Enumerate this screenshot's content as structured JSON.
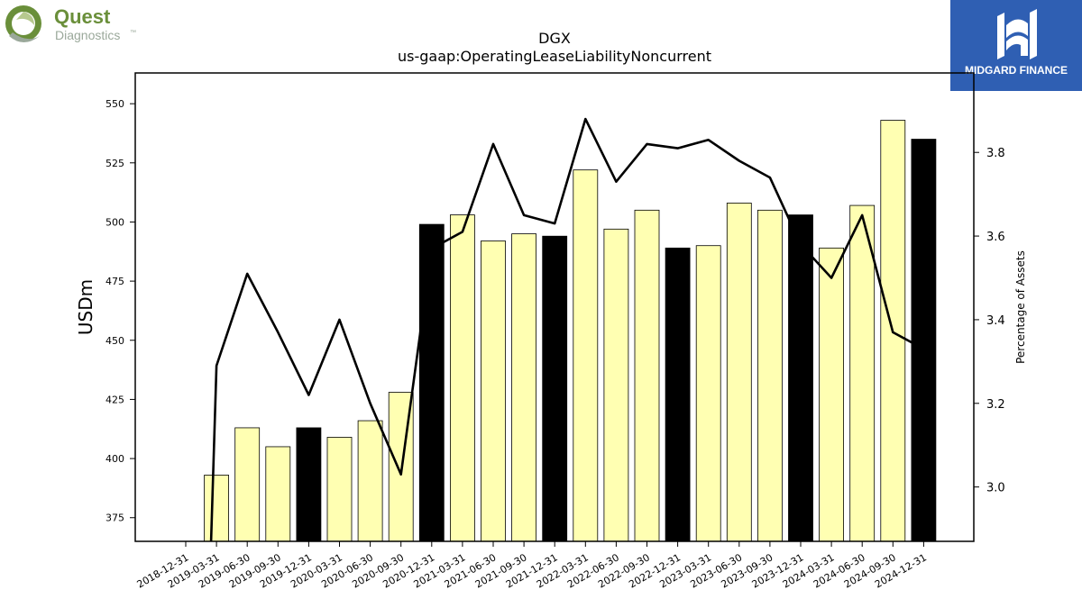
{
  "logos": {
    "left_line1": "Quest",
    "left_line2": "Diagnostics",
    "left_mark": "™",
    "right_text": "MIDGARD FINANCE"
  },
  "colors": {
    "bar_normal": "#ffffb2",
    "bar_highlight": "#000000",
    "line": "#000000",
    "quest_green": "#6a8f3a",
    "quest_gray": "#9aa89a",
    "midgard_blue": "#2f5fb3"
  },
  "chart_data": {
    "type": "bar",
    "title": "DGX",
    "subtitle": "us-gaap:OperatingLeaseLiabilityNoncurrent",
    "ylabel": "USDm",
    "ylabel_right": "Percentage of Assets",
    "ylim": [
      365,
      563
    ],
    "ylim_right": [
      2.87,
      3.99
    ],
    "yticks": [
      375,
      400,
      425,
      450,
      475,
      500,
      525,
      550
    ],
    "yticks_right": [
      3.0,
      3.2,
      3.4,
      3.6,
      3.8
    ],
    "yticks_right_labels": [
      "3.0",
      "3.2",
      "3.4",
      "3.6",
      "3.8"
    ],
    "categories": [
      "2018-12-31",
      "2019-03-31",
      "2019-06-30",
      "2019-09-30",
      "2019-12-31",
      "2020-03-31",
      "2020-06-30",
      "2020-09-30",
      "2020-12-31",
      "2021-03-31",
      "2021-06-30",
      "2021-09-30",
      "2021-12-31",
      "2022-03-31",
      "2022-06-30",
      "2022-09-30",
      "2022-12-31",
      "2023-03-31",
      "2023-06-30",
      "2023-09-30",
      "2023-12-31",
      "2024-03-31",
      "2024-06-30",
      "2024-09-30",
      "2024-12-31"
    ],
    "series": [
      {
        "values": [
          null,
          393,
          413,
          405,
          413,
          409,
          416,
          428,
          499,
          503,
          492,
          495,
          494,
          522,
          497,
          505,
          489,
          490,
          508,
          505,
          503,
          489,
          507,
          543,
          535
        ],
        "highlight": [
          false,
          false,
          false,
          false,
          true,
          false,
          false,
          false,
          true,
          false,
          false,
          false,
          true,
          false,
          false,
          false,
          true,
          false,
          false,
          false,
          true,
          false,
          false,
          false,
          true
        ]
      },
      {
        "axis": "right",
        "type": "line",
        "values": [
          null,
          3.29,
          3.51,
          3.37,
          3.22,
          3.4,
          3.2,
          3.03,
          3.57,
          3.61,
          3.82,
          3.65,
          3.63,
          3.88,
          3.73,
          3.82,
          3.81,
          3.83,
          3.78,
          3.74,
          3.58,
          3.5,
          3.65,
          3.37,
          3.33
        ]
      }
    ],
    "grid": false,
    "legend": "none"
  }
}
